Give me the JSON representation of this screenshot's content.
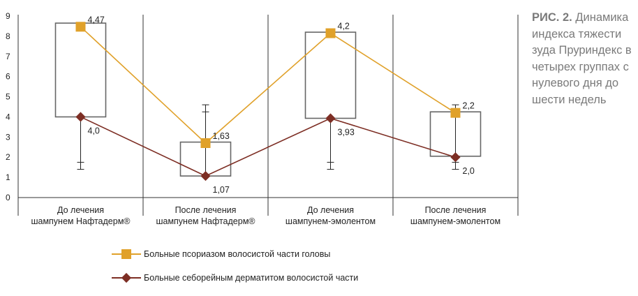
{
  "caption": {
    "label": "РИС. 2.",
    "text": "Динамика индекса тяжести зуда Пруриндекс в четырех группах с нулевого дня до шести недель"
  },
  "chart_data": {
    "type": "line",
    "title": "",
    "xlabel": "",
    "ylabel": "",
    "ylim": [
      0,
      9
    ],
    "yticks": [
      "0",
      "1",
      "2",
      "3",
      "4",
      "5",
      "6",
      "7",
      "8",
      "9"
    ],
    "categories": [
      [
        "До лечения",
        "шампунем Нафтадерм®"
      ],
      [
        "После лечения",
        "шампунем Нафтадерм®"
      ],
      [
        "До лечения",
        "шампунем-эмолентом"
      ],
      [
        "После лечения",
        "шампунем-эмолентом"
      ]
    ],
    "series": [
      {
        "name": "Больные псориазом волосистой части головы",
        "color": "#e0a12a",
        "marker": "square",
        "values": [
          8.47,
          2.7,
          8.15,
          4.2
        ],
        "value_labels": [
          "4,47",
          "1,63",
          "4,2",
          "2,2"
        ]
      },
      {
        "name": "Больные себорейным дерматитом волосистой части",
        "color": "#7d2e24",
        "marker": "diamond",
        "values": [
          4.0,
          1.07,
          3.93,
          2.0
        ],
        "value_labels": [
          "4,0",
          "1,07",
          "3,93",
          "2,0"
        ]
      }
    ],
    "boxes": [
      {
        "low": 4.0,
        "high": 8.65
      },
      {
        "low": 1.07,
        "high": 2.75
      },
      {
        "low": 3.93,
        "high": 8.2
      },
      {
        "low": 2.05,
        "high": 4.25
      }
    ],
    "whiskers": [
      {
        "low": 1.4,
        "high": 4.0,
        "ticks": [
          1.4,
          1.75
        ]
      },
      {
        "low": 1.07,
        "high": 4.6,
        "ticks": [
          4.6,
          4.25
        ]
      },
      {
        "low": 1.4,
        "high": 3.93,
        "ticks": [
          1.4,
          1.75
        ]
      },
      {
        "low": 1.4,
        "high": 4.6,
        "ticks": [
          1.4,
          1.75,
          4.6
        ]
      }
    ],
    "colors": {
      "axis": "#333333",
      "box": "#666666",
      "whisker": "#222222"
    }
  }
}
